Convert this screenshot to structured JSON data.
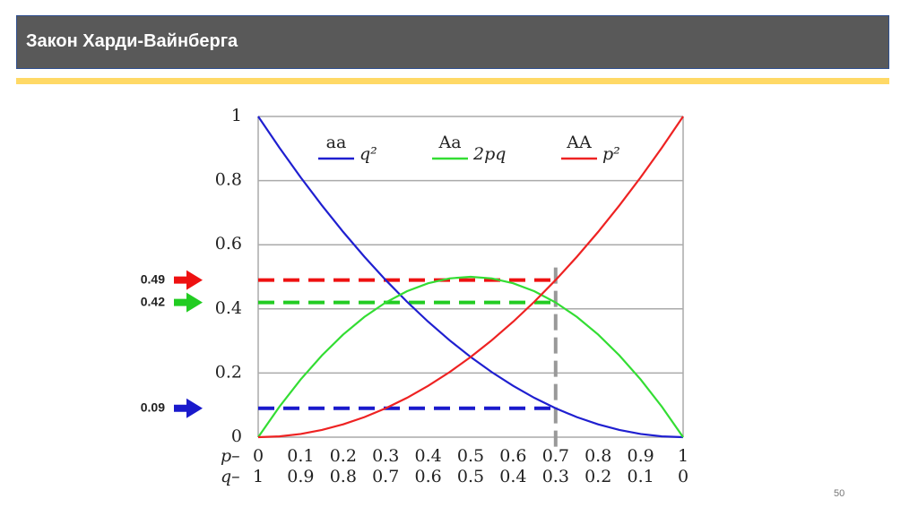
{
  "header": {
    "title": "Закон Харди-Вайнберга"
  },
  "footer": {
    "page_number": "50"
  },
  "chart_data": {
    "type": "line",
    "x_label": "p–",
    "x2_label": "q–",
    "x": [
      0,
      0.05,
      0.1,
      0.15,
      0.2,
      0.25,
      0.3,
      0.35,
      0.4,
      0.45,
      0.5,
      0.55,
      0.6,
      0.65,
      0.7,
      0.75,
      0.8,
      0.85,
      0.9,
      0.95,
      1
    ],
    "xlim": [
      0,
      1
    ],
    "xticks": [
      0,
      0.1,
      0.2,
      0.3,
      0.4,
      0.5,
      0.6,
      0.7,
      0.8,
      0.9,
      1
    ],
    "x2ticks": [
      1,
      0.9,
      0.8,
      0.7,
      0.6,
      0.5,
      0.4,
      0.3,
      0.2,
      0.1,
      0
    ],
    "ylim": [
      0,
      1
    ],
    "yticks": [
      0,
      0.2,
      0.4,
      0.6,
      0.8,
      1
    ],
    "grid": true,
    "series": [
      {
        "name": "aa",
        "formula": "q²",
        "color": "#1f1fd0",
        "values": [
          1,
          0.9025,
          0.81,
          0.7225,
          0.64,
          0.5625,
          0.49,
          0.4225,
          0.36,
          0.3025,
          0.25,
          0.2025,
          0.16,
          0.1225,
          0.09,
          0.0625,
          0.04,
          0.0225,
          0.01,
          0.0025,
          0
        ]
      },
      {
        "name": "Aa",
        "formula": "2pq",
        "color": "#33dd33",
        "values": [
          0,
          0.095,
          0.18,
          0.255,
          0.32,
          0.375,
          0.42,
          0.455,
          0.48,
          0.495,
          0.5,
          0.495,
          0.48,
          0.455,
          0.42,
          0.375,
          0.32,
          0.255,
          0.18,
          0.095,
          0
        ]
      },
      {
        "name": "AA",
        "formula": "p²",
        "color": "#ee2222",
        "values": [
          0,
          0.0025,
          0.01,
          0.0225,
          0.04,
          0.0625,
          0.09,
          0.1225,
          0.16,
          0.2025,
          0.25,
          0.3025,
          0.36,
          0.4225,
          0.49,
          0.5625,
          0.64,
          0.7225,
          0.81,
          0.9025,
          1
        ]
      }
    ],
    "marker_x": 0.7,
    "marker_color": "#999999",
    "annotations": [
      {
        "value": 0.49,
        "color": "#ee1111"
      },
      {
        "value": 0.42,
        "color": "#22cc22"
      },
      {
        "value": 0.09,
        "color": "#1a1acc"
      }
    ]
  }
}
